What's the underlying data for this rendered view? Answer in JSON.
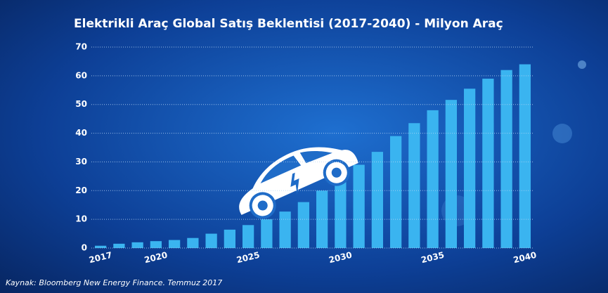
{
  "chart_data": {
    "type": "bar",
    "title": "Elektrikli Araç Global Satış Beklentisi (2017-2040) - Milyon Araç",
    "source": "Kaynak: Bloomberg New Energy Finance. Temmuz 2017",
    "categories": [
      "2017",
      null,
      null,
      "2020",
      null,
      null,
      null,
      null,
      "2025",
      null,
      null,
      null,
      null,
      "2030",
      null,
      null,
      null,
      null,
      "2035",
      null,
      null,
      null,
      null,
      "2040"
    ],
    "values": [
      0.8,
      1.5,
      2,
      2.4,
      2.8,
      3.5,
      5,
      6.4,
      8,
      10,
      12.7,
      16,
      20,
      24.5,
      29,
      33.5,
      39,
      43.5,
      48,
      51.6,
      55.5,
      59,
      62,
      64
    ],
    "color": "#3ab4f0",
    "ylim": [
      0,
      70
    ],
    "yticks": [
      0,
      10,
      20,
      30,
      40,
      50,
      60,
      70
    ],
    "grid": true
  }
}
